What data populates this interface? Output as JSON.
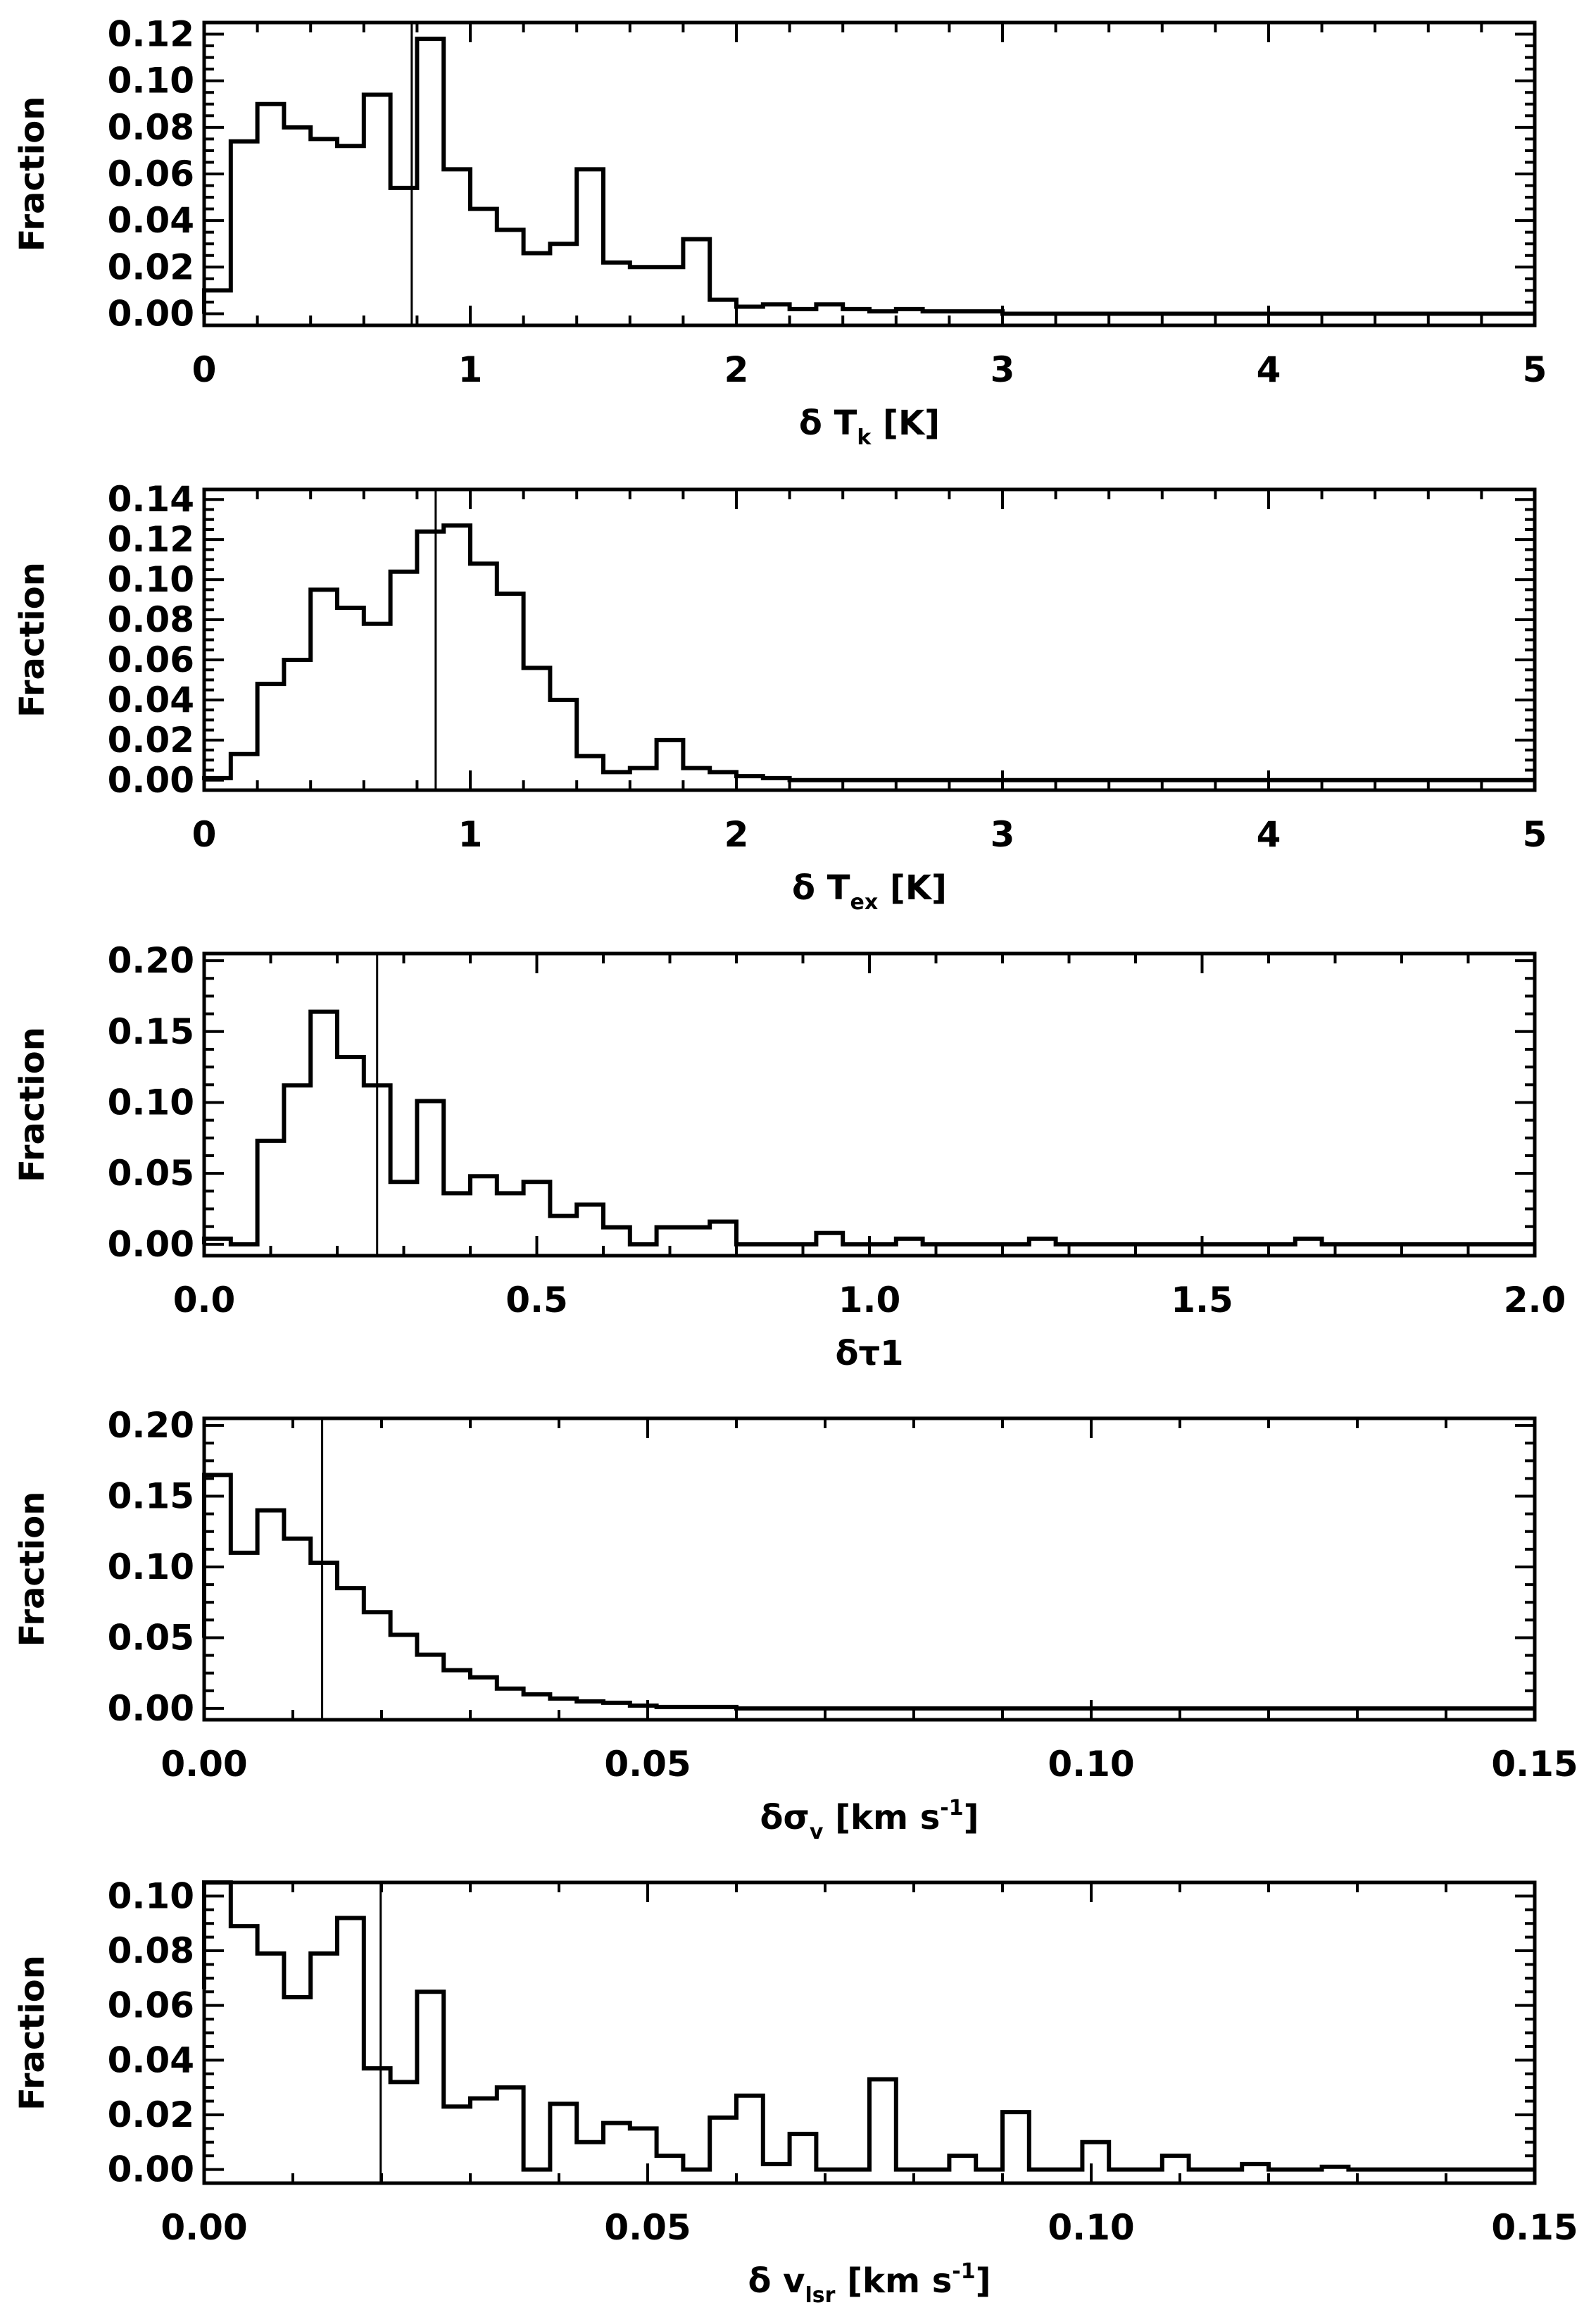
{
  "chart_data": [
    {
      "type": "histogram",
      "xlabel": "δ T_k [K]",
      "ylabel": "Fraction",
      "xlim": [
        0,
        5
      ],
      "ylim": [
        -0.005,
        0.125
      ],
      "xticks": [
        "0",
        "1",
        "2",
        "3",
        "4",
        "5"
      ],
      "yticks": [
        "0.00",
        "0.02",
        "0.04",
        "0.06",
        "0.08",
        "0.10",
        "0.12"
      ],
      "bin_edges": [
        0.0,
        0.1,
        0.2,
        0.3,
        0.4,
        0.5,
        0.6,
        0.7,
        0.8,
        0.9,
        1.0,
        1.1,
        1.2,
        1.3,
        1.4,
        1.5,
        1.6,
        1.7,
        1.8,
        1.9,
        2.0,
        2.1,
        2.2,
        2.3,
        2.4,
        2.5,
        2.6,
        2.7,
        2.8,
        2.9,
        3.0,
        3.1,
        3.2,
        3.3,
        3.4,
        3.5,
        3.6,
        3.7,
        3.8,
        3.9,
        4.0,
        4.1,
        4.2,
        4.3,
        4.4,
        4.5,
        4.6,
        4.7,
        4.8,
        4.9,
        5.0
      ],
      "values": [
        0.01,
        0.074,
        0.09,
        0.08,
        0.075,
        0.072,
        0.094,
        0.054,
        0.118,
        0.062,
        0.045,
        0.036,
        0.026,
        0.03,
        0.062,
        0.022,
        0.02,
        0.02,
        0.032,
        0.006,
        0.003,
        0.004,
        0.002,
        0.004,
        0.002,
        0.001,
        0.002,
        0.001,
        0.001,
        0.001,
        0.0,
        0.0,
        0.0,
        0.0,
        0.0,
        0.0,
        0.0,
        0.0,
        0.0,
        0.0,
        0.0,
        0.0,
        0.0,
        0.0,
        0.0,
        0.0,
        0.0,
        0.0,
        0.0,
        0.0
      ],
      "marker_x": 0.78
    },
    {
      "type": "histogram",
      "xlabel": "δ T_ex [K]",
      "ylabel": "Fraction",
      "xlim": [
        0,
        5
      ],
      "ylim": [
        -0.005,
        0.145
      ],
      "xticks": [
        "0",
        "1",
        "2",
        "3",
        "4",
        "5"
      ],
      "yticks": [
        "0.00",
        "0.02",
        "0.04",
        "0.06",
        "0.08",
        "0.10",
        "0.12",
        "0.14"
      ],
      "bin_edges": [
        0.0,
        0.1,
        0.2,
        0.3,
        0.4,
        0.5,
        0.6,
        0.7,
        0.8,
        0.9,
        1.0,
        1.1,
        1.2,
        1.3,
        1.4,
        1.5,
        1.6,
        1.7,
        1.8,
        1.9,
        2.0,
        2.1,
        2.2,
        2.3,
        2.4,
        2.5,
        2.6,
        2.7,
        2.8,
        2.9,
        3.0,
        3.1,
        3.2,
        3.3,
        3.4,
        3.5,
        3.6,
        3.7,
        3.8,
        3.9,
        4.0,
        4.1,
        4.2,
        4.3,
        4.4,
        4.5,
        4.6,
        4.7,
        4.8,
        4.9,
        5.0
      ],
      "values": [
        0.001,
        0.013,
        0.048,
        0.06,
        0.095,
        0.086,
        0.078,
        0.104,
        0.124,
        0.127,
        0.108,
        0.093,
        0.056,
        0.04,
        0.012,
        0.004,
        0.006,
        0.02,
        0.006,
        0.004,
        0.002,
        0.001,
        0.0,
        0.0,
        0.0,
        0.0,
        0.0,
        0.0,
        0.0,
        0.0,
        0.0,
        0.0,
        0.0,
        0.0,
        0.0,
        0.0,
        0.0,
        0.0,
        0.0,
        0.0,
        0.0,
        0.0,
        0.0,
        0.0,
        0.0,
        0.0,
        0.0,
        0.0,
        0.0,
        0.0
      ],
      "marker_x": 0.87
    },
    {
      "type": "histogram",
      "xlabel": "δτ1",
      "ylabel": "Fraction",
      "xlim": [
        0.0,
        2.0
      ],
      "ylim": [
        -0.008,
        0.205
      ],
      "xticks": [
        "0.0",
        "0.5",
        "1.0",
        "1.5",
        "2.0"
      ],
      "yticks": [
        "0.00",
        "0.05",
        "0.10",
        "0.15",
        "0.20"
      ],
      "bin_edges": [
        0.0,
        0.04,
        0.08,
        0.12,
        0.16,
        0.2,
        0.24,
        0.28,
        0.32,
        0.36,
        0.4,
        0.44,
        0.48,
        0.52,
        0.56,
        0.6,
        0.64,
        0.68,
        0.72,
        0.76,
        0.8,
        0.84,
        0.88,
        0.92,
        0.96,
        1.0,
        1.04,
        1.08,
        1.12,
        1.16,
        1.2,
        1.24,
        1.28,
        1.32,
        1.36,
        1.4,
        1.44,
        1.48,
        1.52,
        1.56,
        1.6,
        1.64,
        1.68,
        1.72,
        1.76,
        1.8,
        1.84,
        1.88,
        1.92,
        1.96,
        2.0
      ],
      "values": [
        0.004,
        0.0,
        0.073,
        0.112,
        0.164,
        0.132,
        0.112,
        0.044,
        0.101,
        0.036,
        0.048,
        0.036,
        0.044,
        0.02,
        0.028,
        0.012,
        0.0,
        0.012,
        0.012,
        0.016,
        0.0,
        0.0,
        0.0,
        0.008,
        0.0,
        0.0,
        0.004,
        0.0,
        0.0,
        0.0,
        0.0,
        0.004,
        0.0,
        0.0,
        0.0,
        0.0,
        0.0,
        0.0,
        0.0,
        0.0,
        0.0,
        0.004,
        0.0,
        0.0,
        0.0,
        0.0,
        0.0,
        0.0,
        0.0,
        0.0
      ],
      "marker_x": 0.26
    },
    {
      "type": "histogram",
      "xlabel": "δσ_v [km s^-1]",
      "ylabel": "Fraction",
      "xlim": [
        0.0,
        0.15
      ],
      "ylim": [
        -0.008,
        0.205
      ],
      "xticks": [
        "0.00",
        "0.05",
        "0.10",
        "0.15"
      ],
      "yticks": [
        "0.00",
        "0.05",
        "0.10",
        "0.15",
        "0.20"
      ],
      "bin_edges": [
        0.0,
        0.003,
        0.006,
        0.009,
        0.012,
        0.015,
        0.018,
        0.021,
        0.024,
        0.027,
        0.03,
        0.033,
        0.036,
        0.039,
        0.042,
        0.045,
        0.048,
        0.051,
        0.054,
        0.057,
        0.06,
        0.063,
        0.066,
        0.069,
        0.072,
        0.075,
        0.078,
        0.081,
        0.084,
        0.087,
        0.09,
        0.093,
        0.096,
        0.099,
        0.102,
        0.105,
        0.108,
        0.111,
        0.114,
        0.117,
        0.12,
        0.123,
        0.126,
        0.129,
        0.132,
        0.135,
        0.138,
        0.141,
        0.144,
        0.147,
        0.15
      ],
      "values": [
        0.165,
        0.11,
        0.14,
        0.12,
        0.103,
        0.085,
        0.068,
        0.052,
        0.038,
        0.027,
        0.022,
        0.014,
        0.01,
        0.007,
        0.005,
        0.004,
        0.002,
        0.001,
        0.001,
        0.001,
        0.0,
        0.0,
        0.0,
        0.0,
        0.0,
        0.0,
        0.0,
        0.0,
        0.0,
        0.0,
        0.0,
        0.0,
        0.0,
        0.0,
        0.0,
        0.0,
        0.0,
        0.0,
        0.0,
        0.0,
        0.0,
        0.0,
        0.0,
        0.0,
        0.0,
        0.0,
        0.0,
        0.0,
        0.0,
        0.0
      ],
      "leading_value": 0.05,
      "marker_x": 0.0133
    },
    {
      "type": "histogram",
      "xlabel": "δ v_lsr [km s^-1]",
      "ylabel": "Fraction",
      "xlim": [
        0.0,
        0.15
      ],
      "ylim": [
        -0.005,
        0.105
      ],
      "xticks": [
        "0.00",
        "0.05",
        "0.10",
        "0.15"
      ],
      "yticks": [
        "0.00",
        "0.02",
        "0.04",
        "0.06",
        "0.08",
        "0.10"
      ],
      "bin_edges": [
        0.0,
        0.003,
        0.006,
        0.009,
        0.012,
        0.015,
        0.018,
        0.021,
        0.024,
        0.027,
        0.03,
        0.033,
        0.036,
        0.039,
        0.042,
        0.045,
        0.048,
        0.051,
        0.054,
        0.057,
        0.06,
        0.063,
        0.066,
        0.069,
        0.072,
        0.075,
        0.078,
        0.081,
        0.084,
        0.087,
        0.09,
        0.093,
        0.096,
        0.099,
        0.102,
        0.105,
        0.108,
        0.111,
        0.114,
        0.117,
        0.12,
        0.123,
        0.126,
        0.129,
        0.132,
        0.135,
        0.138,
        0.141,
        0.144,
        0.147,
        0.15
      ],
      "values": [
        0.105,
        0.089,
        0.079,
        0.063,
        0.079,
        0.092,
        0.037,
        0.032,
        0.065,
        0.023,
        0.026,
        0.03,
        0.0,
        0.024,
        0.01,
        0.017,
        0.015,
        0.005,
        0.0,
        0.019,
        0.027,
        0.002,
        0.013,
        0.0,
        0.0,
        0.033,
        0.0,
        0.0,
        0.005,
        0.0,
        0.021,
        0.0,
        0.0,
        0.01,
        0.0,
        0.0,
        0.005,
        0.0,
        0.0,
        0.002,
        0.0,
        0.0,
        0.001,
        0.0,
        0.0,
        0.0,
        0.0,
        0.0,
        0.0,
        0.0
      ],
      "leading_value": 0.066,
      "marker_x": 0.0199
    }
  ]
}
